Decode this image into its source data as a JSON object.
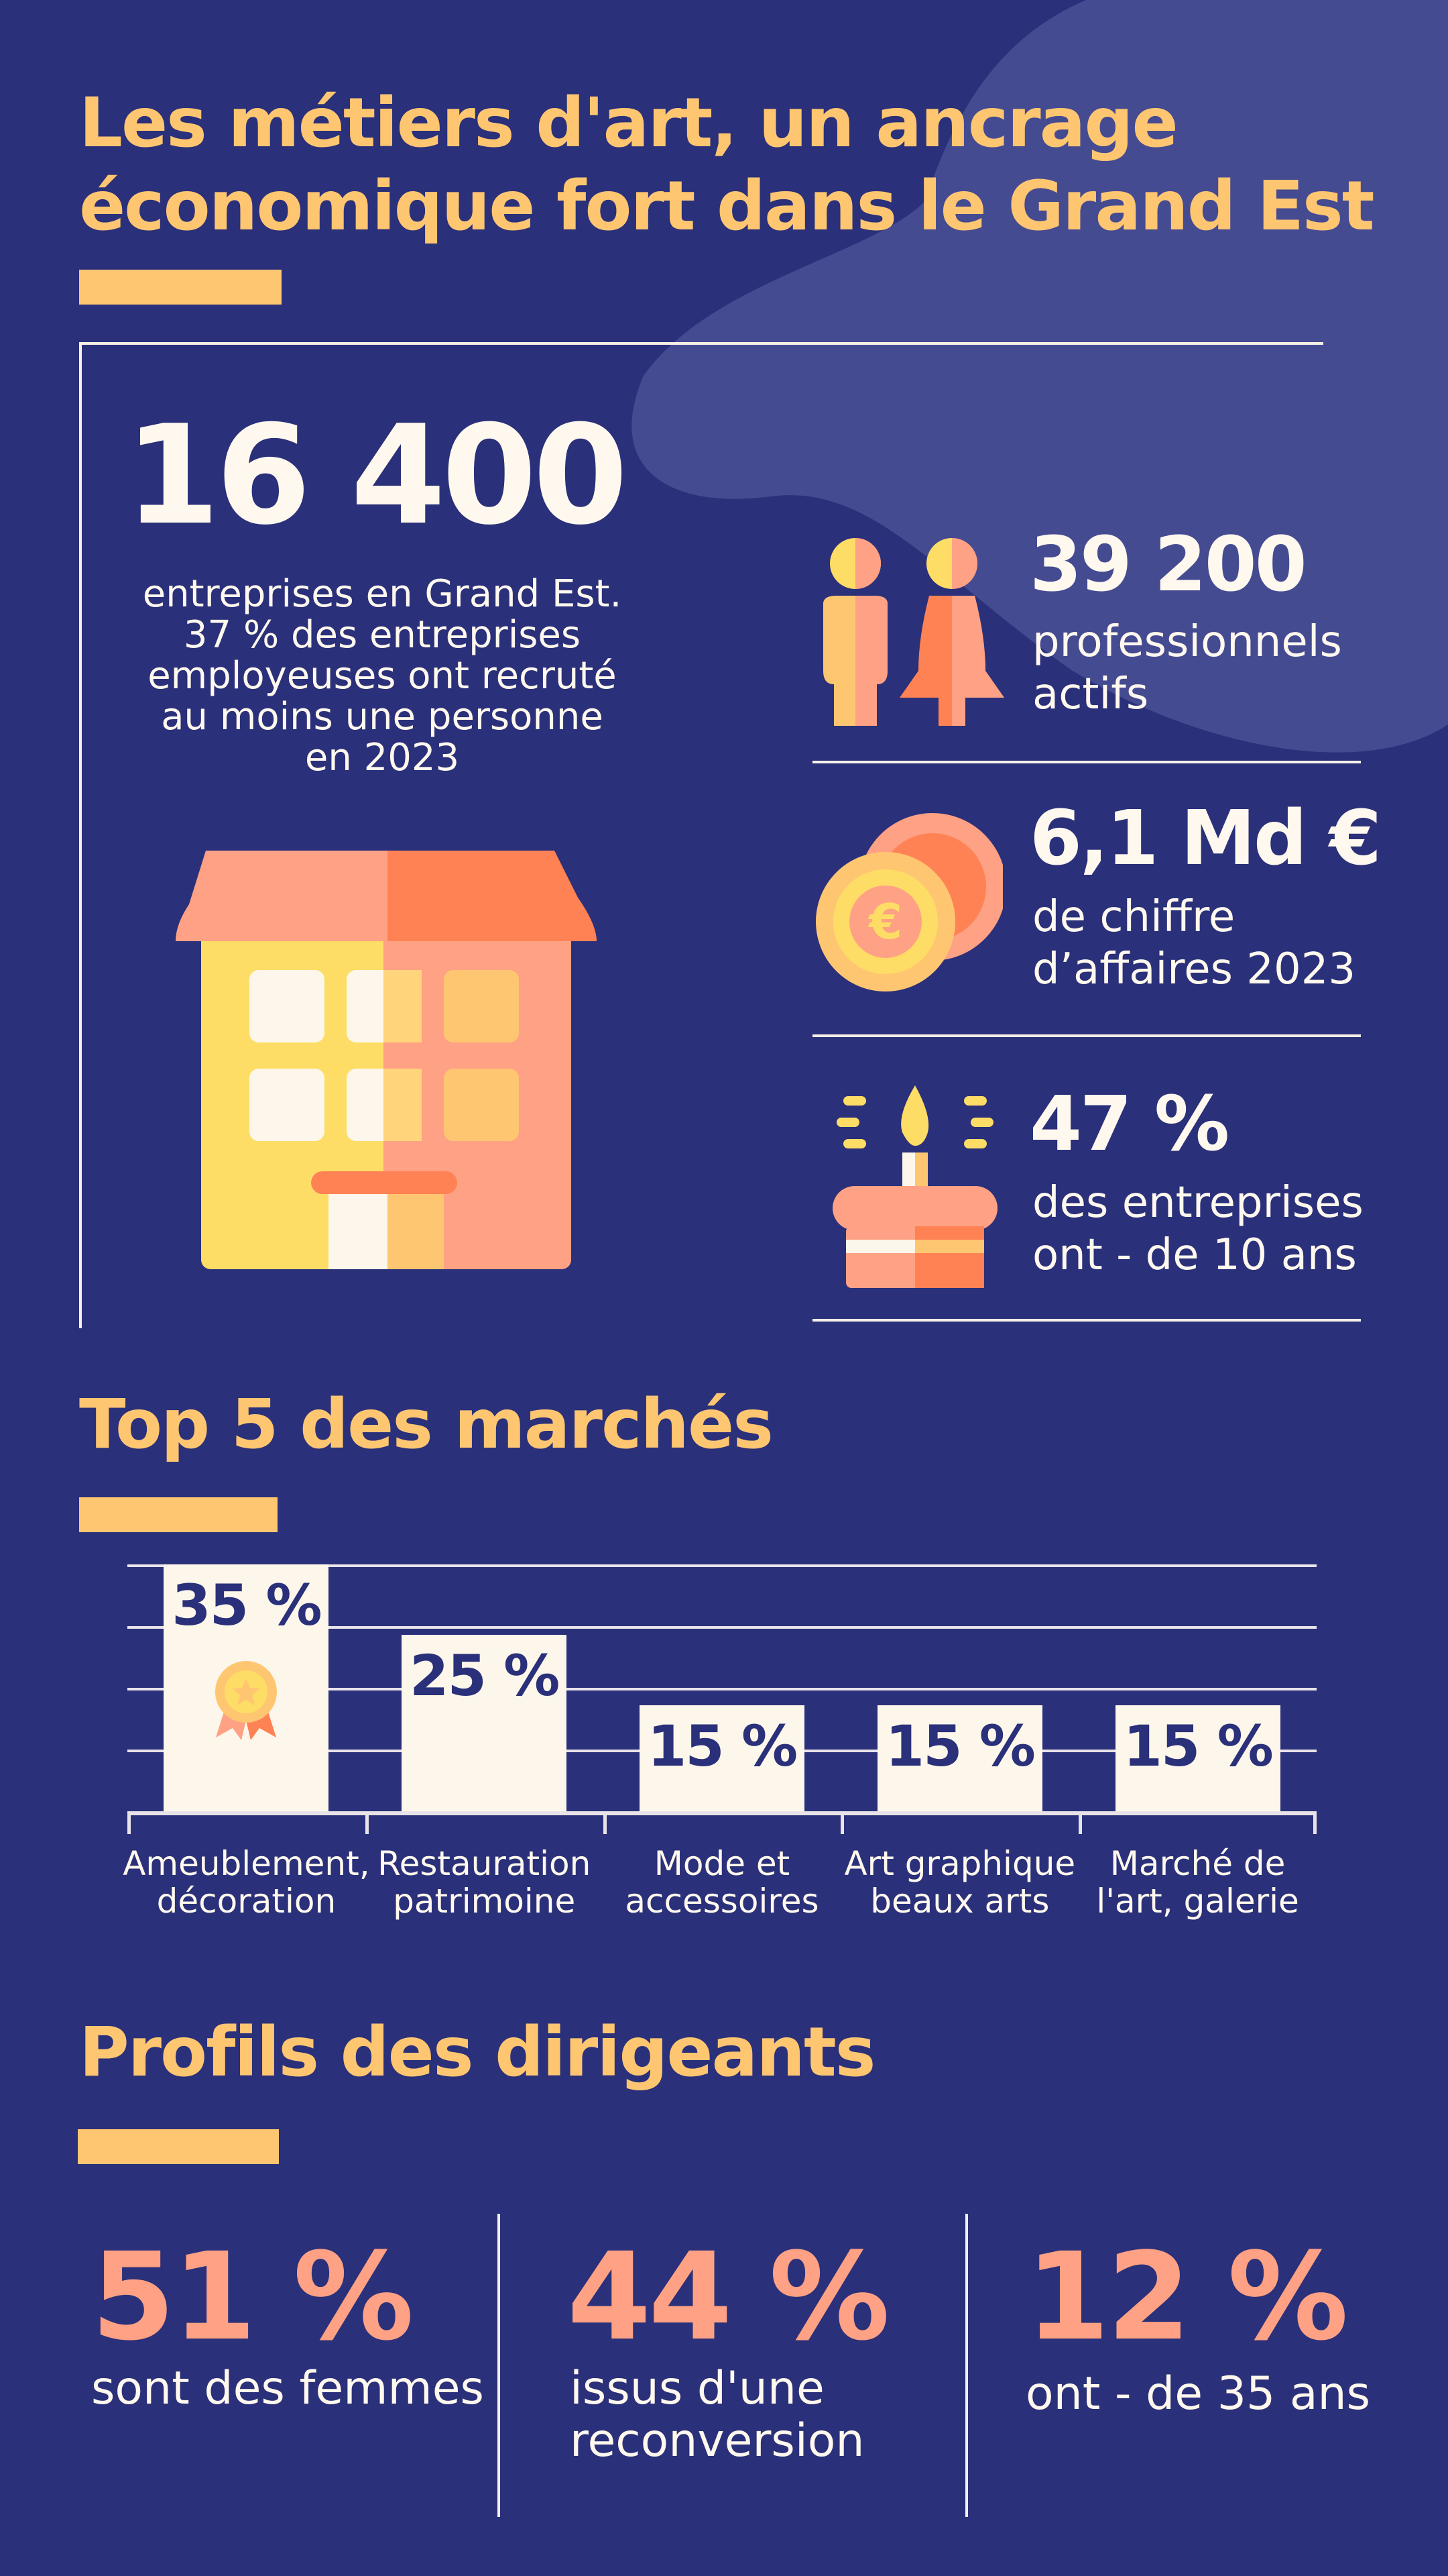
{
  "colors": {
    "background": "#2a3079",
    "accent_yellow": "#ffc672",
    "accent_salmon": "#ffa184",
    "blob": "#454b91",
    "cream": "#fdf6eb"
  },
  "header": {
    "title": "Les métiers d'art, un ancrage\néconomique fort dans le Grand Est"
  },
  "main_stat": {
    "value": "16 400",
    "description": "entreprises en Grand Est.\n37 % des entreprises\nemployeuses ont recruté\nau moins une personne\nen 2023",
    "icon": "building-icon"
  },
  "side_stats": [
    {
      "value": "39 200",
      "label": "professionnels\nactifs",
      "icon": "people-icon"
    },
    {
      "value": "6,1 Md €",
      "label": "de chiffre\nd’affaires 2023",
      "icon": "euro-coins-icon"
    },
    {
      "value": "47 %",
      "label": "des entreprises\nont - de 10 ans",
      "icon": "birthday-cake-icon"
    }
  ],
  "markets": {
    "title": "Top 5 des marchés",
    "award_icon": "medal-icon"
  },
  "chart_data": {
    "type": "bar",
    "title": "Top 5 des marchés",
    "categories": [
      "Ameublement,\ndécoration",
      "Restauration\npatrimoine",
      "Mode et\naccessoires",
      "Art graphique\nbeaux arts",
      "Marché de\nl'art, galerie"
    ],
    "values": [
      35,
      25,
      15,
      15,
      15
    ],
    "value_labels": [
      "35 %",
      "25 %",
      "15 %",
      "15 %",
      "15 %"
    ],
    "ylim": [
      0,
      35
    ],
    "grid": true
  },
  "profiles": {
    "title": "Profils des dirigeants",
    "items": [
      {
        "value": "51 %",
        "label": "sont des femmes"
      },
      {
        "value": "44 %",
        "label": "issus d'une\nreconversion"
      },
      {
        "value": "12 %",
        "label": "ont -  de 35 ans"
      }
    ]
  }
}
